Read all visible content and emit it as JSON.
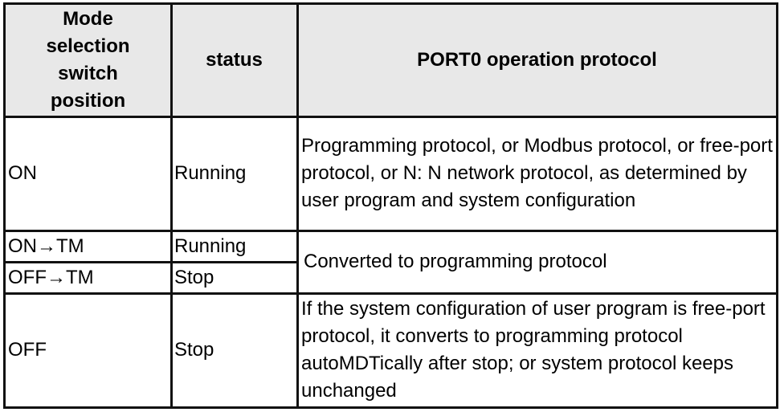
{
  "table": {
    "headers": [
      "Mode selection switch position",
      "status",
      "PORT0 operation protocol"
    ],
    "rows": [
      {
        "mode": "ON",
        "status": "Running",
        "protocol": "Programming protocol, or Modbus protocol, or free-port protocol, or N: N network protocol, as determined by user program and system configuration"
      },
      {
        "mode": "ON→TM",
        "status": "Running",
        "protocol": "Converted to programming protocol"
      },
      {
        "mode": "OFF→TM",
        "status": "Stop",
        "protocol": ""
      },
      {
        "mode": "OFF",
        "status": "Stop",
        "protocol": "If the system configuration of user program is free-port protocol, it converts to programming protocol autoMDTically after stop; or system protocol keeps unchanged"
      }
    ]
  },
  "colors": {
    "header_bg": "#e8e8e8",
    "border": "#111111"
  }
}
